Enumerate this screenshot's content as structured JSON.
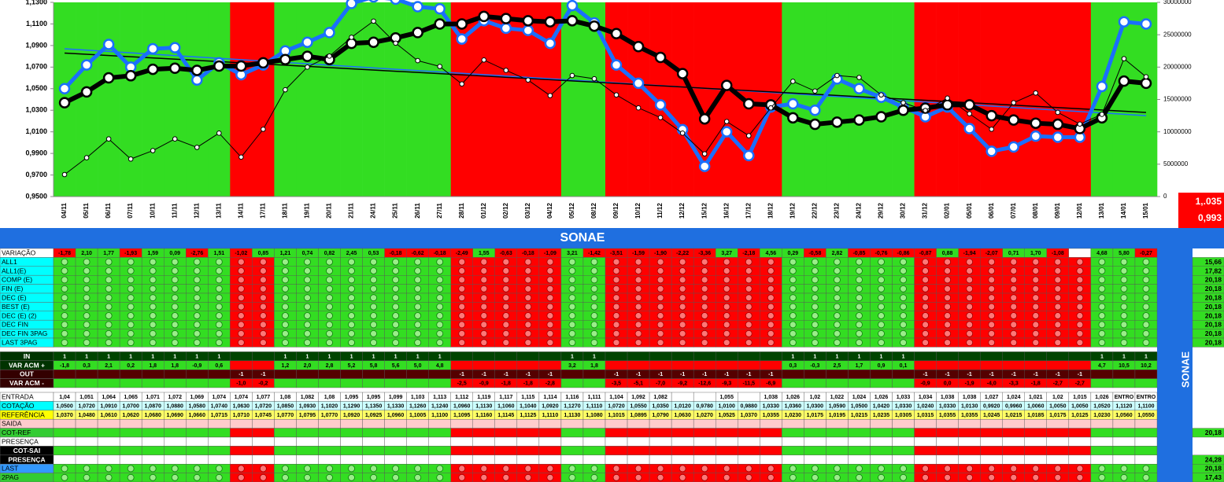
{
  "chart_data": {
    "type": "line",
    "categories": [
      "04/11",
      "05/11",
      "06/11",
      "07/11",
      "10/11",
      "11/11",
      "12/11",
      "13/11",
      "14/11",
      "17/11",
      "18/11",
      "19/11",
      "20/11",
      "21/11",
      "24/11",
      "25/11",
      "26/11",
      "27/11",
      "28/11",
      "01/12",
      "02/12",
      "03/12",
      "04/12",
      "05/12",
      "08/12",
      "09/12",
      "10/12",
      "11/12",
      "12/12",
      "15/12",
      "16/12",
      "17/12",
      "18/12",
      "19/12",
      "22/12",
      "23/12",
      "24/12",
      "29/12",
      "30/12",
      "31/12",
      "02/01",
      "05/01",
      "06/01",
      "07/01",
      "08/01",
      "09/01",
      "12/01",
      "13/01",
      "14/01",
      "15/01"
    ],
    "band_colors": [
      "#33dd22",
      "#33dd22",
      "#33dd22",
      "#33dd22",
      "#33dd22",
      "#33dd22",
      "#33dd22",
      "#33dd22",
      "#ff0000",
      "#ff0000",
      "#33dd22",
      "#33dd22",
      "#33dd22",
      "#33dd22",
      "#33dd22",
      "#33dd22",
      "#33dd22",
      "#33dd22",
      "#ff0000",
      "#ff0000",
      "#ff0000",
      "#ff0000",
      "#ff0000",
      "#33dd22",
      "#33dd22",
      "#ff0000",
      "#ff0000",
      "#ff0000",
      "#ff0000",
      "#ff0000",
      "#ff0000",
      "#ff0000",
      "#ff0000",
      "#33dd22",
      "#33dd22",
      "#33dd22",
      "#33dd22",
      "#33dd22",
      "#33dd22",
      "#ff0000",
      "#ff0000",
      "#ff0000",
      "#ff0000",
      "#ff0000",
      "#ff0000",
      "#ff0000",
      "#ff0000",
      "#33dd22",
      "#33dd22",
      "#33dd22"
    ],
    "series": [
      {
        "color": "#1a6fff",
        "values": [
          1.05,
          1.072,
          1.091,
          1.07,
          1.087,
          1.088,
          1.058,
          1.074,
          1.063,
          1.072,
          1.085,
          1.093,
          1.102,
          1.129,
          1.135,
          1.133,
          1.126,
          1.124,
          1.096,
          1.113,
          1.106,
          1.104,
          1.092,
          1.127,
          1.111,
          1.072,
          1.055,
          1.035,
          1.012,
          0.978,
          1.01,
          0.988,
          1.033,
          1.036,
          1.03,
          1.059,
          1.05,
          1.042,
          1.033,
          1.024,
          1.033,
          1.013,
          0.992,
          0.996,
          1.006,
          1.005,
          1.005,
          1.052,
          1.112,
          1.11
        ]
      },
      {
        "color": "#000000",
        "values": [
          1.037,
          1.047,
          1.06,
          1.062,
          1.068,
          1.069,
          1.067,
          1.071,
          1.071,
          1.074,
          1.077,
          1.08,
          1.077,
          1.092,
          1.093,
          1.097,
          1.102,
          1.11,
          1.11,
          1.117,
          1.115,
          1.113,
          1.112,
          1.113,
          1.108,
          1.101,
          1.089,
          1.079,
          1.064,
          1.022,
          1.053,
          1.036,
          1.035,
          1.023,
          1.017,
          1.019,
          1.021,
          1.024,
          1.03,
          1.032,
          1.035,
          1.035,
          1.025,
          1.021,
          1.018,
          1.017,
          1.013,
          1.023,
          1.057,
          1.055
        ]
      },
      {
        "color": "#000000",
        "axis": "y2",
        "values": [
          3400000,
          6000000,
          8900000,
          5800000,
          7100000,
          8900000,
          7600000,
          9800000,
          6100000,
          10400000,
          16500000,
          20000000,
          21700000,
          24600000,
          27100000,
          23700000,
          21000000,
          20100000,
          17400000,
          21100000,
          19500000,
          18000000,
          15600000,
          18700000,
          18200000,
          15700000,
          13700000,
          12200000,
          9800000,
          6600000,
          11600000,
          9400000,
          13700000,
          17800000,
          16300000,
          18700000,
          18400000,
          15700000,
          14500000,
          13300000,
          15200000,
          12800000,
          10400000,
          14500000,
          16000000,
          13000000,
          11200000,
          12700000,
          21300000,
          18500000
        ]
      }
    ],
    "trendlines": [
      {
        "color": "#1a6fff",
        "start": 1.087,
        "end": 1.025
      },
      {
        "color": "#000000",
        "start": 1.083,
        "end": 1.028
      }
    ],
    "ylim": [
      0.95,
      1.13
    ],
    "yticks": [
      {
        "value": 0.95,
        "label": "0,9500"
      },
      {
        "value": 0.97,
        "label": "0,9700"
      },
      {
        "value": 0.99,
        "label": "0,9900"
      },
      {
        "value": 1.01,
        "label": "1,0100"
      },
      {
        "value": 1.03,
        "label": "1,0300"
      },
      {
        "value": 1.05,
        "label": "1,0500"
      },
      {
        "value": 1.07,
        "label": "1,0700"
      },
      {
        "value": 1.09,
        "label": "1,0900"
      },
      {
        "value": 1.11,
        "label": "1,1100"
      },
      {
        "value": 1.13,
        "label": "1,1300"
      }
    ],
    "y2lim": [
      0,
      30000000
    ],
    "y2ticks": [
      0,
      5000000,
      10000000,
      15000000,
      20000000,
      25000000,
      30000000
    ],
    "annotations": [
      "1,.035",
      "0,993"
    ]
  },
  "table": {
    "title": "SONAE",
    "side_title": "SONAE",
    "rows": [
      {
        "label": "VARIAÇÃO",
        "label_color": "#ffffff",
        "cell_color": "sign",
        "cells": [
          "-1,78",
          "2,10",
          "1,77",
          "-1,93",
          "1,59",
          "0,09",
          "-2,76",
          "1,51",
          "-1,02",
          "0,85",
          "1,21",
          "0,74",
          "0,82",
          "2,45",
          "0,53",
          "-0,18",
          "-0,62",
          "-0,18",
          "-2,49",
          "1,55",
          "-0,63",
          "-0,18",
          "-1,09",
          "3,21",
          "-1,42",
          "-3,51",
          "-1,59",
          "-1,90",
          "-2,22",
          "-3,36",
          "3,27",
          "-2,18",
          "4,56",
          "0,29",
          "-0,58",
          "2,82",
          "-0,85",
          "-0,76",
          "-0,86",
          "-0,87",
          "0,88",
          "-1,94",
          "-2,07",
          "0,71",
          "1,70",
          "-1,08",
          null,
          "4,68",
          "5,80",
          "-0,27"
        ]
      },
      {
        "label": "ALL1",
        "label_color": "#00ffff",
        "dots": true,
        "right": "15,66"
      },
      {
        "label": "ALL1(E)",
        "label_color": "#00ffff",
        "dots": true,
        "right": "17,82"
      },
      {
        "label": "COMP (E)",
        "label_color": "#00ffff",
        "dots": true,
        "right": "20,18"
      },
      {
        "label": "FIN (E)",
        "label_color": "#00ffff",
        "dots": true,
        "right": "20,18"
      },
      {
        "label": "DEC (E)",
        "label_color": "#00ffff",
        "dots": true,
        "right": "20,18"
      },
      {
        "label": "BEST (E)",
        "label_color": "#00ffff",
        "dots": true,
        "right": "20,18"
      },
      {
        "label": "DEC (E) (2)",
        "label_color": "#00ffff",
        "dots": true,
        "right": "20,18"
      },
      {
        "label": "DEC FIN",
        "label_color": "#00ffff",
        "dots": true,
        "right": "20,18"
      },
      {
        "label": "DEC FIN 3PAG",
        "label_color": "#00ffff",
        "dots": true,
        "right": "20,18"
      },
      {
        "label": "LAST 3PAG",
        "label_color": "#00ffff",
        "dots": true,
        "right": "20,18"
      },
      {
        "label": "IN",
        "label_color": "#003300",
        "cell_color": "#004400",
        "cells": [
          1,
          1,
          1,
          1,
          1,
          1,
          1,
          1,
          null,
          null,
          1,
          1,
          1,
          1,
          1,
          1,
          1,
          1,
          null,
          null,
          null,
          null,
          null,
          1,
          1,
          null,
          null,
          null,
          null,
          null,
          null,
          null,
          null,
          1,
          1,
          1,
          1,
          1,
          1,
          null,
          null,
          null,
          null,
          null,
          null,
          null,
          null,
          1,
          1,
          1
        ]
      },
      {
        "label": "VAR ACM +",
        "label_color": "#003300",
        "cell_color": "band",
        "cells": [
          "-1,8",
          "0,3",
          "2,1",
          "0,2",
          "1,8",
          "1,8",
          "-0,9",
          "0,6",
          null,
          null,
          "1,2",
          "2,0",
          "2,8",
          "5,2",
          "5,8",
          "5,6",
          "5,0",
          "4,8",
          null,
          null,
          null,
          null,
          null,
          "3,2",
          "1,8",
          null,
          null,
          null,
          null,
          null,
          null,
          null,
          null,
          "0,3",
          "-0,3",
          "2,5",
          "1,7",
          "0,9",
          "0,1",
          null,
          null,
          null,
          null,
          null,
          null,
          null,
          null,
          "4,7",
          "10,5",
          "10,2"
        ]
      },
      {
        "label": "OUT",
        "label_color": "#330000",
        "cell_color": "#550000",
        "cells": [
          null,
          null,
          null,
          null,
          null,
          null,
          null,
          null,
          -1,
          -1,
          null,
          null,
          null,
          null,
          null,
          null,
          null,
          null,
          -1,
          -1,
          -1,
          -1,
          -1,
          null,
          null,
          -1,
          -1,
          -1,
          -1,
          -1,
          -1,
          -1,
          -1,
          null,
          null,
          null,
          null,
          null,
          null,
          -1,
          -1,
          -1,
          -1,
          -1,
          -1,
          -1,
          -1,
          null,
          null,
          null
        ]
      },
      {
        "label": "VAR ACM -",
        "label_color": "#330000",
        "cell_color": "band",
        "cells": [
          null,
          null,
          null,
          null,
          null,
          null,
          null,
          null,
          "-1,0",
          "-0,2",
          null,
          null,
          null,
          null,
          null,
          null,
          null,
          null,
          "-2,5",
          "-0,9",
          "-1,8",
          "-1,8",
          "-2,8",
          null,
          null,
          "-3,5",
          "-5,1",
          "-7,0",
          "-9,2",
          "-12,6",
          "-9,3",
          "-11,5",
          "-6,9",
          null,
          null,
          null,
          null,
          null,
          null,
          "-0,9",
          "0,0",
          "-1,9",
          "-4,0",
          "-3,3",
          "-1,8",
          "-2,7",
          "-2,7",
          null,
          null,
          null
        ]
      },
      {
        "label": "ENTRADA",
        "label_color": "#ffffff",
        "cell_color": "#ffffff",
        "cells": [
          "1,04",
          "1,051",
          "1,064",
          "1,065",
          "1,071",
          "1,072",
          "1,069",
          "1,074",
          "1,074",
          "1,077",
          "1,08",
          "1,082",
          "1,08",
          "1,095",
          "1,095",
          "1,099",
          "1,103",
          "1,113",
          "1,112",
          "1,119",
          "1,117",
          "1,115",
          "1,114",
          "1,116",
          "1,111",
          "1,104",
          "1,092",
          "1,082",
          null,
          null,
          "1,055",
          null,
          "1,038",
          "1,026",
          "1,02",
          "1,022",
          "1,024",
          "1,026",
          "1,033",
          "1,034",
          "1,038",
          "1,038",
          "1,027",
          "1,024",
          "1,021",
          "1,02",
          "1,015",
          "1,026",
          "ENTRO",
          "ENTRO"
        ]
      },
      {
        "label": "COTAÇÃO",
        "label_color": "#00ffff",
        "cell_color": "#ccffff",
        "cells": [
          "1,0500",
          "1,0720",
          "1,0910",
          "1,0700",
          "1,0870",
          "1,0880",
          "1,0580",
          "1,0740",
          "1,0630",
          "1,0720",
          "1,0850",
          "1,0930",
          "1,1020",
          "1,1290",
          "1,1350",
          "1,1330",
          "1,1260",
          "1,1240",
          "1,0960",
          "1,1130",
          "1,1060",
          "1,1040",
          "1,0920",
          "1,1270",
          "1,1110",
          "1,0720",
          "1,0550",
          "1,0350",
          "1,0120",
          "0,9780",
          "1,0100",
          "0,9880",
          "1,0330",
          "1,0360",
          "1,0300",
          "1,0590",
          "1,0500",
          "1,0420",
          "1,0330",
          "1,0240",
          "1,0330",
          "1,0130",
          "0,9920",
          "0,9960",
          "1,0060",
          "1,0050",
          "1,0050",
          "1,0520",
          "1,1120",
          "1,1100"
        ]
      },
      {
        "label": "REFERÊNCIA",
        "label_color": "#ffff00",
        "cell_color": "#ffff66",
        "cells": [
          "1,0370",
          "1,0480",
          "1,0610",
          "1,0620",
          "1,0680",
          "1,0690",
          "1,0660",
          "1,0715",
          "1,0710",
          "1,0745",
          "1,0770",
          "1,0795",
          "1,0770",
          "1,0920",
          "1,0925",
          "1,0960",
          "1,1005",
          "1,1100",
          "1,1095",
          "1,1160",
          "1,1145",
          "1,1125",
          "1,1110",
          "1,1130",
          "1,1080",
          "1,1015",
          "1,0895",
          "1,0790",
          "1,0630",
          "1,0270",
          "1,0525",
          "1,0370",
          "1,0355",
          "1,0230",
          "1,0175",
          "1,0195",
          "1,0215",
          "1,0235",
          "1,0305",
          "1,0315",
          "1,0355",
          "1,0355",
          "1,0245",
          "1,0215",
          "1,0185",
          "1,0175",
          "1,0125",
          "1,0230",
          "1,0560",
          "1,0550"
        ]
      },
      {
        "label": "SAIDA",
        "label_color": "#ffcccc",
        "cell_color": "#ffcccc"
      },
      {
        "label": "COT-REF",
        "label_color": "#33cc33",
        "cell_color": "band",
        "right": "20,18"
      },
      {
        "label": "PRESENÇA",
        "label_color": "#ffffff",
        "cell_color": "#ffffff"
      },
      {
        "label": "COT-SAI",
        "label_color": "#000000",
        "cell_color": "band"
      },
      {
        "label": "PRESENÇA",
        "label_color": "#000000",
        "cell_color": "#ffffff",
        "right": "24,28"
      },
      {
        "label": "LAST",
        "label_color": "#3399ff",
        "dots": true,
        "right": "20,18"
      },
      {
        "label": "2PAG",
        "label_color": "#33cc33",
        "dots": true,
        "right": "17,43"
      }
    ]
  }
}
